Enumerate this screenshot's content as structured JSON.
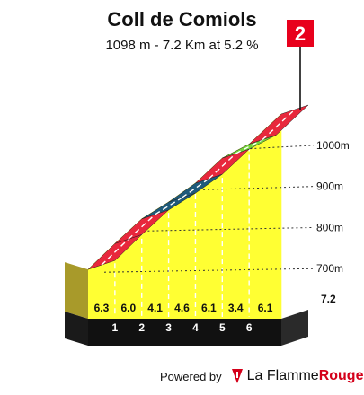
{
  "title": "Coll de Comiols",
  "subtitle": "1098 m - 7.2 Km at 5.2 %",
  "category_badge": "2",
  "footer": {
    "powered_by": "Powered by",
    "brand_part1": "La Flamme",
    "brand_part2": "Rouge",
    "logo_icon": "flame-logo-icon"
  },
  "colors": {
    "face": "#ffff33",
    "base": "#111111",
    "badge": "#e8001c",
    "gradient_high": "#e8283c",
    "gradient_mid": "#1f5a7a",
    "gradient_low": "#74d63a"
  },
  "chart_data": {
    "type": "area",
    "x_unit": "km",
    "y_unit": "m",
    "distance_km": 7.2,
    "summit_altitude_m": 1098,
    "avg_gradient_pct": 5.2,
    "segments": [
      {
        "km_end": 1,
        "gradient": 6.3
      },
      {
        "km_end": 2,
        "gradient": 6.0
      },
      {
        "km_end": 3,
        "gradient": 4.1
      },
      {
        "km_end": 4,
        "gradient": 4.6
      },
      {
        "km_end": 5,
        "gradient": 6.1
      },
      {
        "km_end": 6,
        "gradient": 3.4
      },
      {
        "km_end": 7.2,
        "gradient": 6.1
      }
    ],
    "x_tick_labels": [
      "1",
      "2",
      "3",
      "4",
      "5",
      "6"
    ],
    "end_label": "7.2",
    "y_ticks": [
      700,
      800,
      900,
      1000
    ],
    "y_tick_labels": [
      "700m",
      "800m",
      "900m",
      "1000m"
    ],
    "ylim": [
      600,
      1098
    ]
  }
}
